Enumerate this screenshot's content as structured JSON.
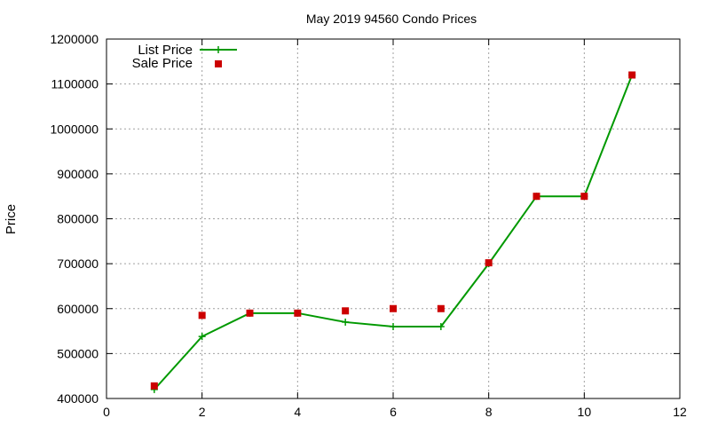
{
  "chart_data": {
    "type": "line",
    "title": "May 2019 94560 Condo Prices",
    "xlabel": "",
    "ylabel": "Price",
    "xlim": [
      0,
      12
    ],
    "ylim": [
      400000,
      1200000
    ],
    "x_ticks": [
      "0",
      "2",
      "4",
      "6",
      "8",
      "10",
      "12"
    ],
    "y_ticks": [
      "400000",
      "500000",
      "600000",
      "700000",
      "800000",
      "900000",
      "1000000",
      "1100000",
      "1200000"
    ],
    "grid": true,
    "legend_position": "top-left",
    "series": [
      {
        "name": "List Price",
        "style": "line-with-plus-markers",
        "color": "#009900",
        "x": [
          1,
          2,
          3,
          4,
          5,
          6,
          7,
          8,
          9,
          10,
          11
        ],
        "y": [
          420000,
          538000,
          590000,
          590000,
          570000,
          560000,
          560000,
          700000,
          850000,
          850000,
          1120000
        ]
      },
      {
        "name": "Sale Price",
        "style": "square-markers",
        "color": "#cc0000",
        "x": [
          1,
          2,
          3,
          4,
          5,
          6,
          7,
          8,
          9,
          10,
          11
        ],
        "y": [
          428000,
          585000,
          590000,
          590000,
          595000,
          600000,
          600000,
          702000,
          850000,
          850000,
          1120000
        ]
      }
    ]
  }
}
